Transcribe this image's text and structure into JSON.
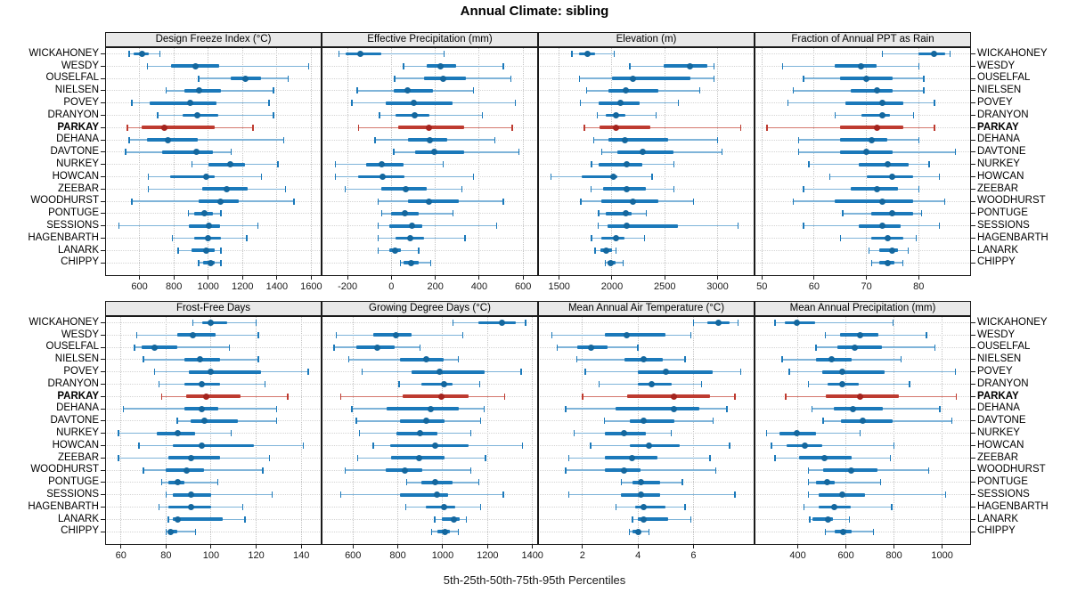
{
  "title": "Annual Climate: sibling",
  "xlabel": "5th-25th-50th-75th-95th Percentiles",
  "highlight_site": "PARKAY",
  "colors": {
    "blue_dot": "#14679E",
    "blue_bar": "#1B79BA",
    "blue_line": "#7FB4D9",
    "red_dot": "#A4241E",
    "red_bar": "#BE3B30",
    "red_line": "#D4786E",
    "strip_bg": "#E9E9E9",
    "panel_border": "#1A1A1A",
    "grid_v": "#C3C3C3",
    "grid_h": "#D4D4D4",
    "tick": "#1A1A1A"
  },
  "sites": [
    "WICKAHONEY",
    "WESDY",
    "OUSELFAL",
    "NIELSEN",
    "POVEY",
    "DRANYON",
    "PARKAY",
    "DEHANA",
    "DAVTONE",
    "NURKEY",
    "HOWCAN",
    "ZEEBAR",
    "WOODHURST",
    "PONTUGE",
    "SESSIONS",
    "HAGENBARTH",
    "LANARK",
    "CHIPPY"
  ],
  "chart_data": {
    "type": "dot-whisker-percentiles",
    "percentiles": [
      5,
      25,
      50,
      75,
      95
    ],
    "grid": "dotted",
    "layout": "2 rows x 4 cols, site labels on both sides, x axes below each panel row",
    "panels": [
      {
        "title": "Design Freeze Index (°C)",
        "ticks": [
          600,
          800,
          1000,
          1200,
          1400,
          1600
        ],
        "xlim": [
          400,
          1660
        ],
        "values": [
          [
            540,
            565,
            617,
            652,
            720
          ],
          [
            645,
            785,
            925,
            1065,
            1585
          ],
          [
            945,
            1130,
            1215,
            1310,
            1465
          ],
          [
            755,
            860,
            945,
            1075,
            1380
          ],
          [
            555,
            660,
            895,
            1050,
            1355
          ],
          [
            705,
            850,
            935,
            1060,
            1380
          ],
          [
            530,
            615,
            745,
            1040,
            1260
          ],
          [
            540,
            645,
            765,
            940,
            1440
          ],
          [
            520,
            730,
            930,
            1025,
            1135
          ],
          [
            905,
            1000,
            1130,
            1215,
            1405
          ],
          [
            650,
            780,
            990,
            1040,
            1310
          ],
          [
            650,
            965,
            1110,
            1230,
            1450
          ],
          [
            555,
            945,
            1070,
            1180,
            1500
          ],
          [
            885,
            920,
            980,
            1025,
            1075
          ],
          [
            480,
            885,
            1005,
            1070,
            1290
          ],
          [
            790,
            920,
            1000,
            1075,
            1225
          ],
          [
            825,
            905,
            990,
            1040,
            1075
          ],
          [
            945,
            970,
            1015,
            1040,
            1075
          ]
        ]
      },
      {
        "title": "Effective Precipitation (mm)",
        "ticks": [
          -200,
          0,
          200,
          400,
          600
        ],
        "xlim": [
          -318,
          668
        ],
        "values": [
          [
            -240,
            -210,
            -140,
            -45,
            240
          ],
          [
            55,
            160,
            225,
            295,
            510
          ],
          [
            15,
            150,
            235,
            340,
            545
          ],
          [
            -155,
            10,
            75,
            190,
            375
          ],
          [
            -180,
            -25,
            100,
            280,
            565
          ],
          [
            -55,
            20,
            105,
            175,
            415
          ],
          [
            -150,
            30,
            170,
            330,
            550
          ],
          [
            -75,
            75,
            175,
            255,
            470
          ],
          [
            10,
            110,
            195,
            330,
            580
          ],
          [
            -255,
            -115,
            -45,
            55,
            235
          ],
          [
            -255,
            -150,
            -40,
            60,
            375
          ],
          [
            -210,
            -45,
            65,
            160,
            320
          ],
          [
            -60,
            75,
            170,
            305,
            510
          ],
          [
            -45,
            0,
            60,
            125,
            280
          ],
          [
            -60,
            -10,
            95,
            140,
            480
          ],
          [
            -60,
            20,
            85,
            150,
            335
          ],
          [
            -60,
            -10,
            15,
            45,
            125
          ],
          [
            40,
            55,
            90,
            125,
            180
          ]
        ]
      },
      {
        "title": "Elevation (m)",
        "ticks": [
          1500,
          2000,
          2500,
          3000
        ],
        "xlim": [
          1300,
          3350
        ],
        "values": [
          [
            1620,
            1685,
            1765,
            1840,
            2020
          ],
          [
            2170,
            2490,
            2740,
            2905,
            2965
          ],
          [
            1690,
            2000,
            2200,
            2745,
            2965
          ],
          [
            1760,
            1965,
            2130,
            2435,
            2830
          ],
          [
            1700,
            1875,
            2080,
            2260,
            2630
          ],
          [
            1860,
            1945,
            2035,
            2125,
            2420
          ],
          [
            1740,
            1880,
            2040,
            2360,
            3220
          ],
          [
            1825,
            1965,
            2125,
            2535,
            3000
          ],
          [
            1905,
            2050,
            2290,
            2580,
            3040
          ],
          [
            1805,
            1870,
            2140,
            2290,
            2585
          ],
          [
            1420,
            1715,
            2015,
            2055,
            2380
          ],
          [
            1800,
            1920,
            2140,
            2325,
            2585
          ],
          [
            1705,
            1895,
            2195,
            2440,
            2770
          ],
          [
            1875,
            1945,
            2130,
            2185,
            2325
          ],
          [
            1870,
            1955,
            2140,
            2625,
            3195
          ],
          [
            1805,
            1900,
            2035,
            2120,
            2310
          ],
          [
            1840,
            1890,
            1945,
            2000,
            2040
          ],
          [
            1935,
            1955,
            1985,
            2030,
            2105
          ]
        ]
      },
      {
        "title": "Fraction of Annual PPT as Rain",
        "ticks": [
          50,
          60,
          70,
          80
        ],
        "xlim": [
          48.6,
          90
        ],
        "values": [
          [
            73,
            80,
            83,
            85,
            86
          ],
          [
            54,
            64,
            69,
            72,
            80
          ],
          [
            58,
            65,
            70,
            75,
            81
          ],
          [
            56,
            67,
            72,
            75,
            81
          ],
          [
            55,
            66,
            73,
            77,
            83
          ],
          [
            64,
            69,
            73,
            74.5,
            79
          ],
          [
            51,
            65,
            72,
            77,
            83
          ],
          [
            57,
            65,
            71,
            74,
            80
          ],
          [
            57,
            65,
            70,
            75,
            87
          ],
          [
            59,
            68.5,
            74,
            78,
            82
          ],
          [
            63,
            70,
            75,
            79,
            84
          ],
          [
            58,
            67,
            72,
            76,
            80
          ],
          [
            56,
            64,
            73,
            79,
            85
          ],
          [
            65.5,
            71,
            75,
            79,
            80.5
          ],
          [
            58,
            68.5,
            73,
            76.5,
            84
          ],
          [
            65,
            71,
            74,
            77,
            79.5
          ],
          [
            70.5,
            72.5,
            75,
            76,
            78
          ],
          [
            71,
            72.5,
            74,
            75.3,
            77
          ]
        ]
      },
      {
        "title": "Frost-Free Days",
        "ticks": [
          60,
          80,
          100,
          120,
          140
        ],
        "xlim": [
          53,
          149
        ],
        "values": [
          [
            92,
            96,
            100,
            107,
            120
          ],
          [
            67,
            85,
            92,
            102,
            121
          ],
          [
            66,
            69,
            75,
            85,
            108
          ],
          [
            70,
            88,
            95,
            104,
            121
          ],
          [
            75,
            90,
            100,
            122,
            143
          ],
          [
            77,
            88,
            96,
            104,
            124
          ],
          [
            78,
            89,
            98,
            113,
            134
          ],
          [
            61,
            88,
            96,
            103,
            129
          ],
          [
            85,
            91,
            97,
            112,
            129
          ],
          [
            59,
            76,
            85,
            93,
            109
          ],
          [
            68,
            83,
            96,
            119,
            141
          ],
          [
            59,
            81,
            91,
            104,
            126
          ],
          [
            70,
            80,
            89,
            97,
            123
          ],
          [
            78,
            81,
            85,
            88,
            103
          ],
          [
            80,
            83,
            91,
            100,
            127
          ],
          [
            77,
            81,
            91,
            100,
            114
          ],
          [
            81,
            83,
            85,
            105,
            115
          ],
          [
            80,
            81,
            82,
            85,
            93
          ]
        ]
      },
      {
        "title": "Growing Degree Days (°C)",
        "ticks": [
          600,
          800,
          1000,
          1200,
          1400
        ],
        "xlim": [
          460,
          1425
        ],
        "values": [
          [
            1045,
            1160,
            1265,
            1325,
            1370
          ],
          [
            525,
            690,
            790,
            860,
            1090
          ],
          [
            515,
            615,
            710,
            785,
            900
          ],
          [
            580,
            810,
            925,
            1005,
            1070
          ],
          [
            640,
            860,
            985,
            1185,
            1350
          ],
          [
            805,
            905,
            1005,
            1045,
            1165
          ],
          [
            545,
            820,
            995,
            1115,
            1275
          ],
          [
            595,
            750,
            945,
            1070,
            1185
          ],
          [
            615,
            810,
            925,
            1010,
            1170
          ],
          [
            630,
            795,
            900,
            975,
            1125
          ],
          [
            690,
            765,
            965,
            1115,
            1355
          ],
          [
            620,
            770,
            895,
            1010,
            1190
          ],
          [
            565,
            745,
            830,
            910,
            1125
          ],
          [
            840,
            905,
            965,
            1045,
            1160
          ],
          [
            545,
            810,
            975,
            1025,
            1270
          ],
          [
            835,
            925,
            1005,
            1055,
            1170
          ],
          [
            965,
            995,
            1050,
            1075,
            1105
          ],
          [
            950,
            975,
            1010,
            1030,
            1070
          ]
        ]
      },
      {
        "title": "Mean Annual Air Temperature (°C)",
        "ticks": [
          2,
          4,
          6
        ],
        "xlim": [
          0.4,
          8.2
        ],
        "values": [
          [
            6.0,
            6.5,
            6.9,
            7.3,
            7.6
          ],
          [
            0.9,
            2.8,
            3.6,
            5.0,
            5.9
          ],
          [
            1.1,
            1.8,
            2.3,
            2.9,
            4.0
          ],
          [
            1.8,
            3.5,
            4.2,
            4.9,
            5.7
          ],
          [
            2.1,
            4.0,
            5.0,
            6.7,
            7.7
          ],
          [
            2.6,
            4.0,
            4.5,
            5.2,
            6.3
          ],
          [
            2.0,
            3.6,
            5.3,
            6.6,
            7.5
          ],
          [
            1.4,
            3.2,
            5.3,
            6.2,
            7.2
          ],
          [
            2.8,
            3.7,
            4.2,
            5.3,
            6.7
          ],
          [
            1.7,
            2.8,
            3.5,
            4.3,
            5.2
          ],
          [
            2.3,
            3.7,
            4.4,
            5.5,
            7.3
          ],
          [
            1.5,
            2.8,
            3.8,
            4.7,
            6.6
          ],
          [
            1.4,
            2.8,
            3.5,
            4.1,
            6.8
          ],
          [
            3.4,
            3.8,
            4.1,
            4.8,
            5.6
          ],
          [
            1.5,
            3.4,
            4.1,
            4.8,
            7.5
          ],
          [
            3.2,
            3.9,
            4.2,
            5.0,
            5.7
          ],
          [
            3.8,
            4.0,
            4.2,
            5.1,
            5.9
          ],
          [
            3.7,
            3.8,
            4.0,
            4.1,
            4.4
          ]
        ]
      },
      {
        "title": "Mean Annual Precipitation (mm)",
        "ticks": [
          400,
          600,
          800,
          1000
        ],
        "xlim": [
          220,
          1120
        ],
        "values": [
          [
            305,
            345,
            395,
            470,
            795
          ],
          [
            515,
            575,
            660,
            735,
            935
          ],
          [
            475,
            565,
            635,
            750,
            970
          ],
          [
            335,
            475,
            540,
            625,
            830
          ],
          [
            365,
            500,
            585,
            760,
            1055
          ],
          [
            445,
            525,
            585,
            655,
            865
          ],
          [
            350,
            515,
            660,
            820,
            1060
          ],
          [
            460,
            550,
            630,
            755,
            990
          ],
          [
            505,
            580,
            670,
            795,
            1040
          ],
          [
            270,
            325,
            395,
            475,
            660
          ],
          [
            290,
            355,
            430,
            500,
            800
          ],
          [
            305,
            405,
            510,
            625,
            785
          ],
          [
            445,
            505,
            620,
            730,
            945
          ],
          [
            445,
            475,
            520,
            555,
            745
          ],
          [
            445,
            485,
            585,
            680,
            1015
          ],
          [
            425,
            485,
            550,
            620,
            790
          ],
          [
            450,
            460,
            525,
            545,
            615
          ],
          [
            515,
            555,
            590,
            625,
            715
          ]
        ]
      }
    ]
  }
}
